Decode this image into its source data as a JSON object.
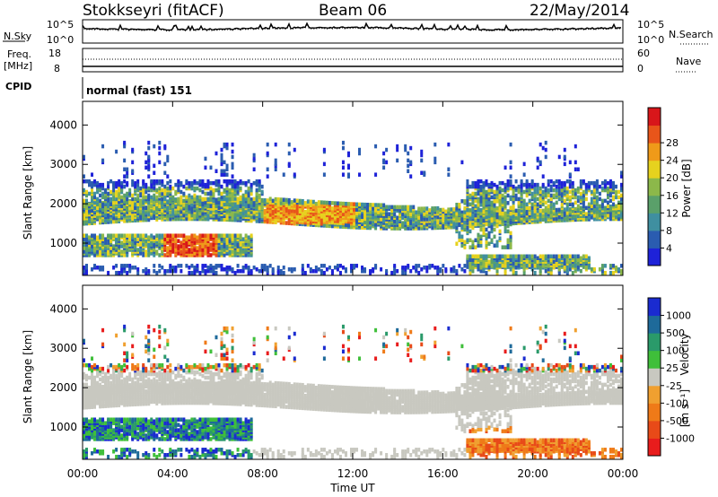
{
  "header": {
    "title": "Stokkseyri (fitACF)",
    "beam": "Beam 06",
    "date": "22/May/2014"
  },
  "chart_data": [
    {
      "type": "line",
      "name_panel": "noise",
      "left_label": "N.Sky",
      "right_label": "N.Search",
      "yticks_left": [
        "10^5",
        "10^0"
      ],
      "yticks_right": [
        "10^5",
        "10^0"
      ]
    },
    {
      "type": "line",
      "name_panel": "frequency",
      "left_label_1": "Freq.",
      "left_label_2": "[MHz]",
      "right_label": "Nave",
      "yticks_left": [
        "18",
        "8"
      ],
      "yticks_right": [
        "60",
        "0"
      ]
    },
    {
      "type": "table",
      "name_panel": "cpid",
      "left_label": "CPID",
      "text": "normal (fast) 151"
    },
    {
      "type": "heatmap",
      "name_panel": "power",
      "ylabel": "Slant Range [km]",
      "yticks": [
        1000,
        2000,
        3000,
        4000
      ],
      "ylim": [
        180,
        4600
      ],
      "xlim": [
        0,
        24
      ],
      "colorbar": {
        "label": "Power [dB]",
        "ticks": [
          "4",
          "8",
          "12",
          "16",
          "20",
          "24",
          "28"
        ],
        "colors": [
          "#1e22d8",
          "#2a5cb0",
          "#3f8fa0",
          "#5aa06a",
          "#8cb84a",
          "#e6d21e",
          "#ef9a19",
          "#e8551a",
          "#d8161a"
        ]
      }
    },
    {
      "type": "heatmap",
      "name_panel": "velocity",
      "ylabel": "Slant Range [km]",
      "yticks": [
        1000,
        2000,
        3000,
        4000
      ],
      "ylim": [
        180,
        4600
      ],
      "xlim": [
        0,
        24
      ],
      "xlabel": "Time UT",
      "xticks": [
        "00:00",
        "04:00",
        "08:00",
        "12:00",
        "16:00",
        "20:00",
        "00:00"
      ],
      "colorbar": {
        "label_main": "Velocity",
        "label_unit": "[m s⁻¹]",
        "ticks": [
          "1000",
          "500",
          "100",
          "25",
          "-25",
          "-100",
          "-500",
          "-1000"
        ],
        "colors": [
          "#1a2bd0",
          "#1e6a9a",
          "#2a9a6a",
          "#3fbf3a",
          "#c8c8c0",
          "#f0a030",
          "#ef7a18",
          "#e84a18",
          "#e81c1c"
        ]
      }
    }
  ]
}
